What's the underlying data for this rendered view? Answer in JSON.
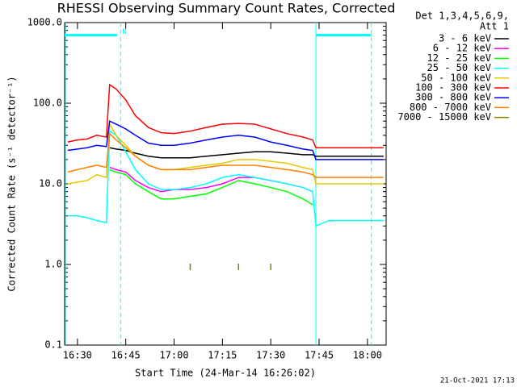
{
  "chart_data": {
    "type": "line",
    "title": "RHESSI Observing Summary Count Rates, Corrected",
    "x_label": "Start Time (24-Mar-14 16:26:02)",
    "y_label": "Corrected Count Rate (s⁻¹ detector⁻¹)",
    "legend_header": [
      "Det 1,3,4,5,6,9,",
      "Att 1"
    ],
    "footer": "21-Oct-2021 17:13",
    "log_y": true,
    "xlim": [
      26.03,
      125.8
    ],
    "ylim": [
      0.1,
      1000
    ],
    "xticks": [
      {
        "value": 30,
        "label": "16:30"
      },
      {
        "value": 45,
        "label": "16:45"
      },
      {
        "value": 60,
        "label": "17:00"
      },
      {
        "value": 75,
        "label": "17:15"
      },
      {
        "value": 90,
        "label": "17:30"
      },
      {
        "value": 105,
        "label": "17:45"
      },
      {
        "value": 120,
        "label": "18:00"
      }
    ],
    "yticks": [
      0.1,
      {
        "value": 1,
        "label": "1.0"
      },
      {
        "value": 10,
        "label": "10.0"
      },
      {
        "value": 100,
        "label": "100.0"
      },
      {
        "value": 1000,
        "label": "1000.0"
      }
    ],
    "x": [
      27,
      30,
      33,
      36,
      39,
      40,
      42,
      45,
      48,
      52,
      56,
      60,
      65,
      70,
      75,
      80,
      85,
      90,
      95,
      100,
      103,
      104,
      108,
      112,
      116,
      120,
      125
    ],
    "series": [
      {
        "name": "3 - 6 keV",
        "color": "#000000",
        "values": [
          null,
          null,
          null,
          null,
          null,
          28,
          27,
          26,
          24,
          22,
          21,
          21,
          21,
          22,
          23,
          24,
          25,
          25,
          24,
          23,
          23,
          22,
          22,
          22,
          22,
          22,
          22
        ]
      },
      {
        "name": "6 - 12 keV",
        "color": "#ff00ff",
        "values": [
          null,
          null,
          null,
          null,
          null,
          16,
          15,
          14,
          11,
          9,
          8,
          8.5,
          8.5,
          9,
          10,
          12,
          12,
          11,
          10,
          9,
          8,
          null,
          null,
          null,
          null,
          null,
          null
        ]
      },
      {
        "name": "12 - 25 keV",
        "color": "#00ff00",
        "values": [
          null,
          null,
          null,
          null,
          null,
          15,
          14,
          13,
          10,
          8,
          6.5,
          6.5,
          7,
          7.5,
          9,
          11,
          10,
          9,
          8,
          6.5,
          5.5,
          null,
          null,
          null,
          null,
          null,
          null
        ]
      },
      {
        "name": "25 - 50 keV",
        "color": "#00ffff",
        "values": [
          4,
          4,
          3.8,
          3.5,
          3.3,
          45,
          40,
          25,
          15,
          10,
          8.5,
          8.5,
          9,
          10,
          12,
          13,
          12,
          11,
          10,
          9,
          8,
          3,
          3.5,
          3.5,
          3.5,
          3.5,
          3.5
        ]
      },
      {
        "name": "50 - 100 keV",
        "color": "#e6c800",
        "values": [
          10,
          10.5,
          11,
          13,
          12,
          55,
          40,
          30,
          22,
          17,
          15,
          15,
          16,
          17,
          18,
          20,
          20,
          19,
          18,
          16,
          15,
          10,
          10,
          10,
          10,
          10,
          10
        ]
      },
      {
        "name": "100 - 300 keV",
        "color": "#ff0000",
        "values": [
          33,
          35,
          36,
          40,
          38,
          170,
          150,
          110,
          70,
          50,
          43,
          42,
          45,
          50,
          55,
          56,
          55,
          48,
          42,
          38,
          35,
          28,
          28,
          28,
          28,
          28,
          28
        ]
      },
      {
        "name": "300 - 800 keV",
        "color": "#0000ff",
        "values": [
          26,
          27,
          28,
          30,
          29,
          60,
          55,
          48,
          40,
          32,
          30,
          30,
          32,
          35,
          38,
          40,
          38,
          33,
          30,
          27,
          26,
          20,
          20,
          20,
          20,
          20,
          20
        ]
      },
      {
        "name": "800 - 7000 keV",
        "color": "#ff8000",
        "values": [
          14,
          15,
          16,
          17,
          16,
          42,
          35,
          28,
          22,
          17,
          15,
          15,
          15,
          16,
          17,
          17,
          17,
          16,
          15,
          14,
          13,
          12,
          12,
          12,
          12,
          12,
          12
        ]
      },
      {
        "name": "7000 - 15000 keV",
        "color": "#808000",
        "values": [
          null,
          null,
          null,
          null,
          null,
          null,
          null,
          null,
          null,
          null,
          null,
          null,
          0.85,
          null,
          null,
          0.85,
          null,
          0.85,
          null,
          null,
          null,
          null,
          null,
          null,
          null,
          null,
          null
        ]
      }
    ],
    "attenuator_color": "#00ffff",
    "attenuator_bars": [
      [
        26.03,
        42.3,
        700
      ],
      [
        104,
        121.2,
        700
      ]
    ],
    "solid_vlines": [
      26.3,
      104
    ],
    "dashed_vlines": [
      43.4,
      121.2
    ],
    "annotation": {
      "text": "N",
      "x": 44.6,
      "y": 700
    }
  }
}
